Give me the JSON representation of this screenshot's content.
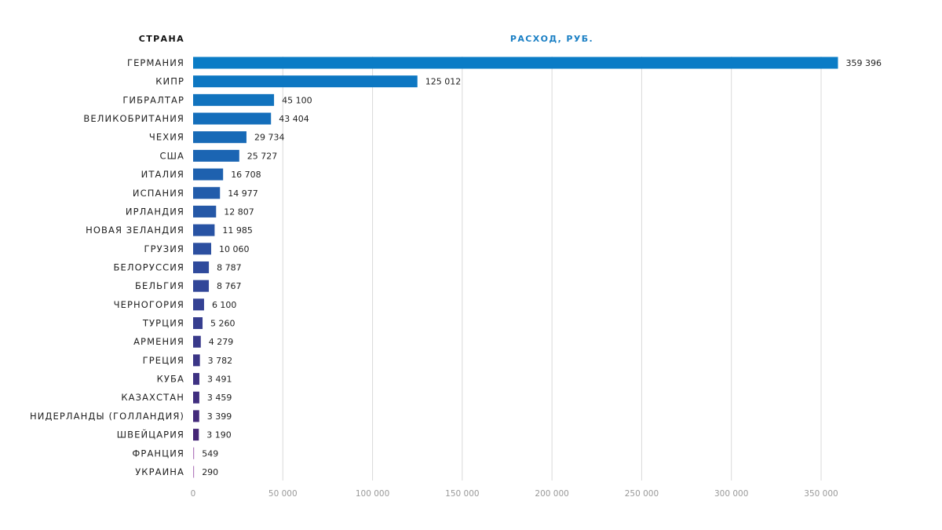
{
  "chart_data": {
    "type": "bar",
    "orientation": "horizontal",
    "category_header": "СТРАНА",
    "value_header": "РАСХОД, РУБ.",
    "categories": [
      "ГЕРМАНИЯ",
      "КИПР",
      "ГИБРАЛТАР",
      "ВЕЛИКОБРИТАНИЯ",
      "ЧЕХИЯ",
      "США",
      "ИТАЛИЯ",
      "ИСПАНИЯ",
      "ИРЛАНДИЯ",
      "НОВАЯ ЗЕЛАНДИЯ",
      "ГРУЗИЯ",
      "БЕЛОРУССИЯ",
      "БЕЛЬГИЯ",
      "ЧЕРНОГОРИЯ",
      "ТУРЦИЯ",
      "АРМЕНИЯ",
      "ГРЕЦИЯ",
      "КУБА",
      "КАЗАХСТАН",
      "НИДЕРЛАНДЫ (ГОЛЛАНДИЯ)",
      "ШВЕЙЦАРИЯ",
      "ФРАНЦИЯ",
      "УКРАИНА"
    ],
    "values": [
      359396,
      125012,
      45100,
      43404,
      29734,
      25727,
      16708,
      14977,
      12807,
      11985,
      10060,
      8787,
      8767,
      6100,
      5260,
      4279,
      3782,
      3491,
      3459,
      3399,
      3190,
      549,
      290
    ],
    "value_labels": [
      "359 396",
      "125 012",
      "45 100",
      "43 404",
      "29 734",
      "25 727",
      "16 708",
      "14 977",
      "12 807",
      "11 985",
      "10 060",
      "8 787",
      "8 767",
      "6 100",
      "5 260",
      "4 279",
      "3 782",
      "3 491",
      "3 459",
      "3 399",
      "3 190",
      "549",
      "290"
    ],
    "xlim": [
      0,
      350000
    ],
    "xticks": [
      0,
      50000,
      100000,
      150000,
      200000,
      250000,
      300000,
      350000
    ],
    "xtick_labels": [
      "0",
      "50 000",
      "100 000",
      "150 000",
      "200 000",
      "250 000",
      "300 000",
      "350 000"
    ],
    "grid": true,
    "colors": {
      "gradient_start": "#0a7cc6",
      "gradient_mid": "#2f4a9c",
      "gradient_end": "#4a1e6e",
      "thin_bar": "#b57fc0",
      "value_header": "#1a7fc4",
      "grid": "#d9d9d9",
      "tick": "#999999"
    }
  }
}
